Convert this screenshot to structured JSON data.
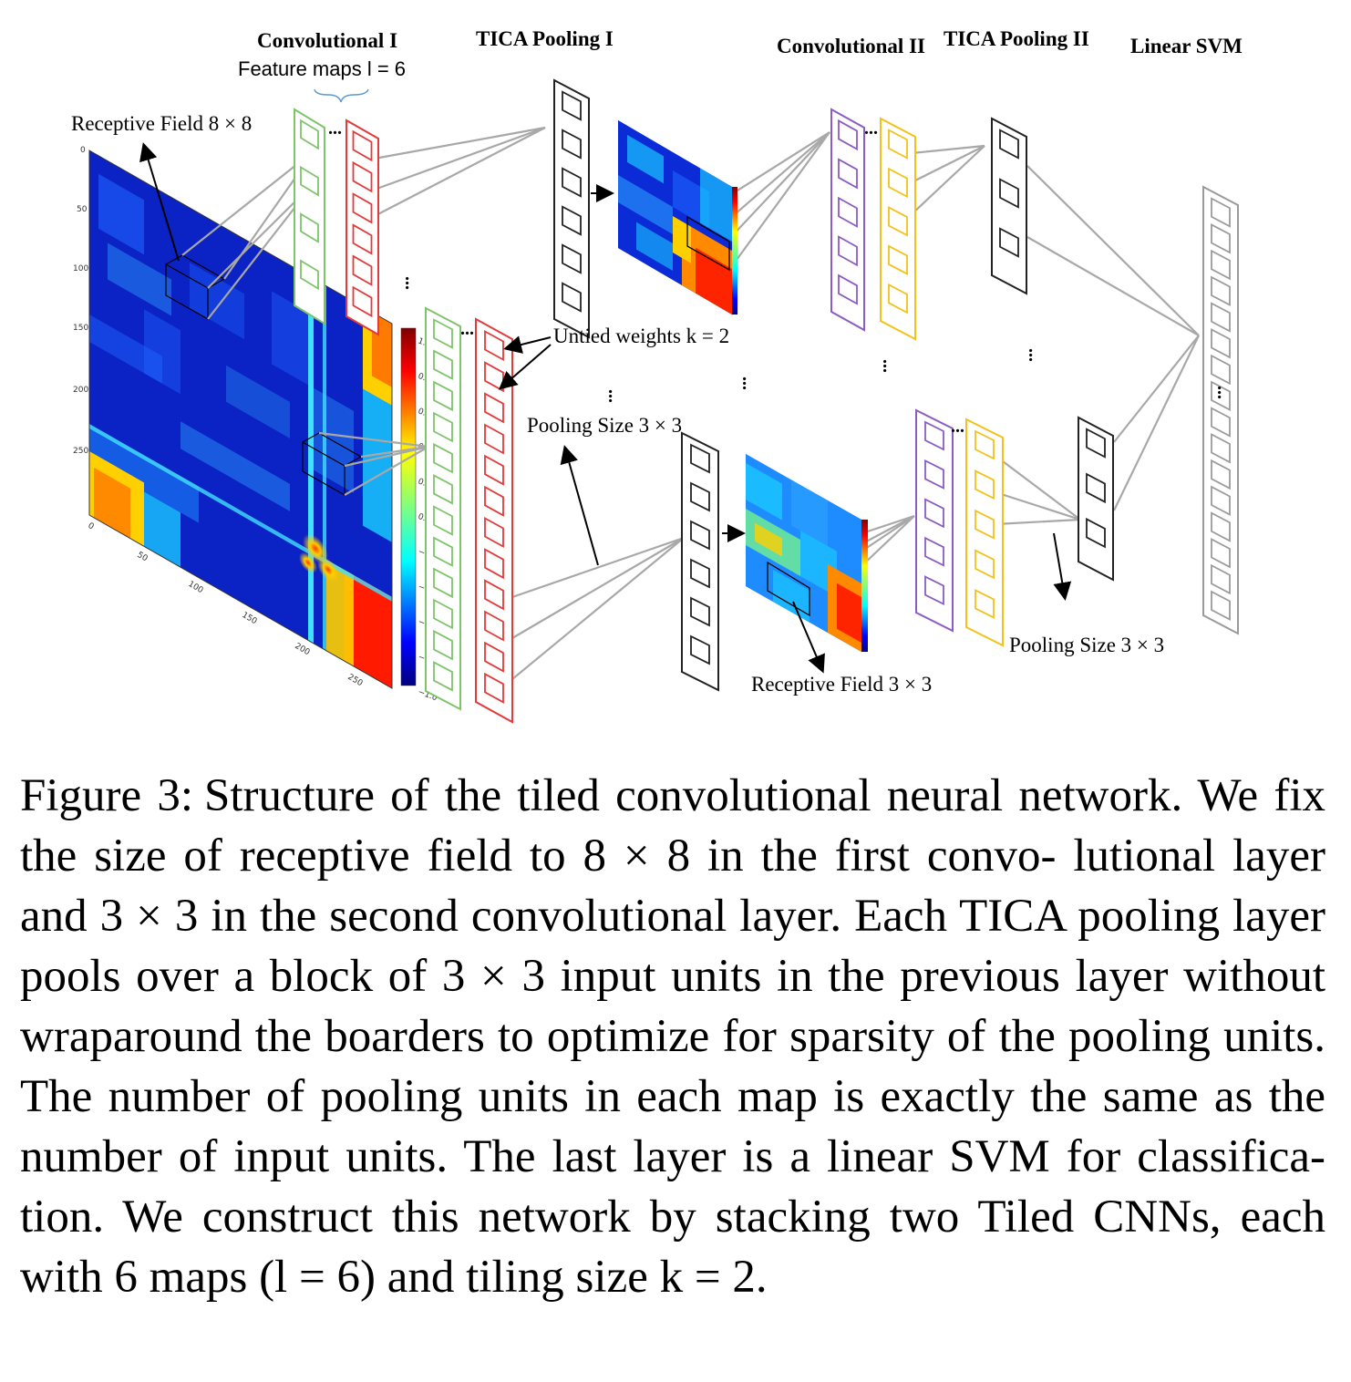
{
  "figure": {
    "titles": {
      "conv1": "Convolutional I",
      "tica1": "TICA Pooling I",
      "conv2": "Convolutional II",
      "tica2": "TICA Pooling II",
      "svm": "Linear SVM"
    },
    "labels": {
      "feature_maps": "Feature maps l = 6",
      "receptive_field_1": "Receptive Field 8 × 8",
      "untied_weights": "Untied weights k = 2",
      "pooling_size_1": "Pooling Size  3 × 3",
      "receptive_field_2": "Receptive Field 3 × 3",
      "pooling_size_2": "Pooling Size  3 × 3",
      "ellipsis": "..."
    },
    "heatmap_ticks": {
      "y": [
        "0",
        "50",
        "100",
        "150",
        "200",
        "250"
      ],
      "x": [
        "0",
        "50",
        "100",
        "150",
        "200",
        "250"
      ]
    },
    "colorbar_ticks": [
      "1.0",
      "0.8",
      "0.6",
      "0.4",
      "0.2",
      "0.0",
      "−0.2",
      "−0.4",
      "−0.6",
      "−0.8",
      "−1.0"
    ],
    "colors": {
      "conv1_map_a": "#7ec46a",
      "conv1_map_b": "#e23b3b",
      "pool": "#222222",
      "conv2_map_a": "#8a5cc4",
      "conv2_map_b": "#f2c21b",
      "svm": "#9a9a9a",
      "connector": "#a8a8a8"
    }
  },
  "caption": {
    "label": "Figure 3:",
    "text": "Structure of the tiled convolutional neural network. We fix the size of receptive field to 8 × 8 in the first convo- lutional layer and 3 × 3 in the second convolutional layer. Each TICA pooling layer pools over a block of 3 × 3 input units in the previous layer without wraparound the boarders to optimize for sparsity of the pooling units. The number of pooling units in each map is exactly the same as the number of input units. The last layer is a linear SVM for classifica- tion. We construct this network by stacking two Tiled CNNs, each with 6 maps (l = 6) and tiling size k = 2."
  }
}
